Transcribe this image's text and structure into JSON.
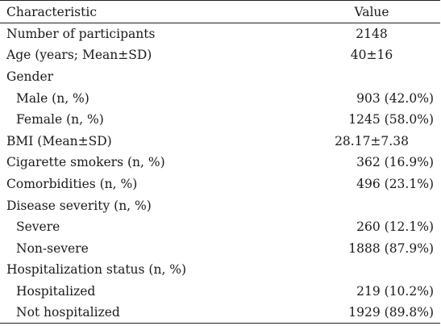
{
  "table": {
    "headers": {
      "characteristic": "Characteristic",
      "value": "Value"
    },
    "rows": [
      {
        "label": "Number of participants",
        "value": "2148"
      },
      {
        "label": "Age (years; Mean±SD)",
        "value": "40±16"
      },
      {
        "label": "Gender",
        "value": ""
      },
      {
        "label": "Male (n, %)",
        "value": "903 (42.0%)"
      },
      {
        "label": "Female (n, %)",
        "value": "1245 (58.0%)"
      },
      {
        "label": "BMI (Mean±SD)",
        "value": "28.17±7.38"
      },
      {
        "label": "Cigarette smokers (n, %)",
        "value": "362 (16.9%)"
      },
      {
        "label": "Comorbidities (n, %)",
        "value": "496 (23.1%)"
      },
      {
        "label": "Disease severity (n, %)",
        "value": ""
      },
      {
        "label": "Severe",
        "value": "260 (12.1%)"
      },
      {
        "label": "Non-severe",
        "value": "1888 (87.9%)"
      },
      {
        "label": "Hospitalization status (n, %)",
        "value": ""
      },
      {
        "label": "Hospitalized",
        "value": "219 (10.2%)"
      },
      {
        "label": "Not hospitalized",
        "value": "1929 (89.8%)"
      }
    ]
  }
}
